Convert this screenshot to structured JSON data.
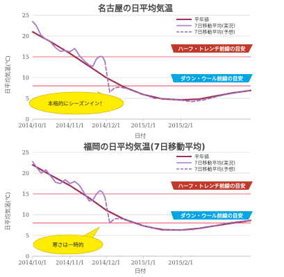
{
  "chart_data": [
    {
      "type": "line",
      "title": "名古屋の日平均気温",
      "xlabel": "日付",
      "ylabel": "日平均気温(℃)",
      "ylim": [
        0,
        25
      ],
      "yticks": [
        0,
        5,
        10,
        15,
        20,
        25
      ],
      "xlim": [
        "2014/10/1",
        "2015/3/31"
      ],
      "xticks": [
        "2014/10/1",
        "2014/11/1",
        "2014/12/1",
        "2015/1/1",
        "2015/2/1"
      ],
      "grid": "horizontal",
      "legend": "top-right",
      "series": [
        {
          "name": "平年値",
          "color": "#a0304f",
          "style": "solid",
          "x": [
            "2014/10/1",
            "2014/10/16",
            "2014/11/1",
            "2014/11/16",
            "2014/12/1",
            "2014/12/16",
            "2015/1/1",
            "2015/1/16",
            "2015/2/1",
            "2015/2/16",
            "2015/3/1",
            "2015/3/16",
            "2015/3/31"
          ],
          "y": [
            21.0,
            18.6,
            15.8,
            12.9,
            10.0,
            7.7,
            5.9,
            4.9,
            4.6,
            4.8,
            5.5,
            6.3,
            6.9
          ]
        },
        {
          "name": "7日移動平均(実況)",
          "color": "#a878d0",
          "style": "solid",
          "x": [
            "2014/10/1",
            "2014/10/4",
            "2014/10/8",
            "2014/10/12",
            "2014/10/16",
            "2014/10/20",
            "2014/10/24",
            "2014/10/28",
            "2014/11/1",
            "2014/11/5",
            "2014/11/9",
            "2014/11/13",
            "2014/11/17",
            "2014/11/20",
            "2014/11/23",
            "2014/11/26",
            "2014/11/28",
            "2014/11/30"
          ],
          "y": [
            23.5,
            22.5,
            20.2,
            19.2,
            18.5,
            17.2,
            16.3,
            16.5,
            16.2,
            17.0,
            15.2,
            14.0,
            13.0,
            12.7,
            14.5,
            15.1,
            15.0,
            13.9
          ]
        },
        {
          "name": "7日移動平均(予想)",
          "color": "#9a6bc2",
          "style": "dashed",
          "x": [
            "2014/11/30",
            "2014/12/2",
            "2014/12/4",
            "2014/12/6",
            "2014/12/8",
            "2014/12/12",
            "2014/12/18",
            "2014/12/25",
            "2015/1/1",
            "2015/1/10",
            "2015/1/20",
            "2015/1/31",
            "2015/2/10",
            "2015/2/20",
            "2015/3/1",
            "2015/3/10",
            "2015/3/20",
            "2015/3/31"
          ],
          "y": [
            13.9,
            10.0,
            6.5,
            7.0,
            7.5,
            7.7,
            7.4,
            6.6,
            6.0,
            5.0,
            4.9,
            4.6,
            4.2,
            4.6,
            5.3,
            5.9,
            6.4,
            6.9
          ]
        }
      ],
      "annotations": [
        {
          "text": "ハーフ・トレンチ前線の目安",
          "y": 15.0,
          "color": "#c0392b"
        },
        {
          "text": "ダウン・ウール前線の目安",
          "y": 8.0,
          "color": "#00a5e3"
        },
        {
          "text": "本格的にシーズンイン！",
          "shape": "callout",
          "color": "#ffec00"
        }
      ]
    },
    {
      "type": "line",
      "title": "福岡の日平均気温(7日移動平均)",
      "xlabel": "日付",
      "ylabel": "日平均気温(℃)",
      "ylim": [
        0,
        25
      ],
      "yticks": [
        0,
        5,
        10,
        15,
        20,
        25
      ],
      "xlim": [
        "2014/10/1",
        "2015/3/31"
      ],
      "xticks": [
        "2014/10/1",
        "2014/11/1",
        "2014/12/1",
        "2015/1/1",
        "2015/2/1"
      ],
      "grid": "horizontal",
      "legend": "top-right",
      "series": [
        {
          "name": "平年値",
          "color": "#a0304f",
          "style": "solid",
          "x": [
            "2014/10/1",
            "2014/10/16",
            "2014/11/1",
            "2014/11/16",
            "2014/12/1",
            "2014/12/16",
            "2015/1/1",
            "2015/1/16",
            "2015/2/1",
            "2015/2/16",
            "2015/3/1",
            "2015/3/16",
            "2015/3/31"
          ],
          "y": [
            22.0,
            19.5,
            17.0,
            14.2,
            11.1,
            8.9,
            7.3,
            6.4,
            6.3,
            6.7,
            7.3,
            8.0,
            8.6
          ]
        },
        {
          "name": "7日移動平均(実況)",
          "color": "#a878d0",
          "style": "solid",
          "x": [
            "2014/10/1",
            "2014/10/4",
            "2014/10/8",
            "2014/10/12",
            "2014/10/16",
            "2014/10/20",
            "2014/10/24",
            "2014/10/28",
            "2014/11/1",
            "2014/11/5",
            "2014/11/9",
            "2014/11/13",
            "2014/11/17",
            "2014/11/20",
            "2014/11/23",
            "2014/11/26",
            "2014/11/28",
            "2014/11/30"
          ],
          "y": [
            22.8,
            21.5,
            20.0,
            20.8,
            19.3,
            17.8,
            17.5,
            18.4,
            17.5,
            18.0,
            17.0,
            15.1,
            13.3,
            13.5,
            15.0,
            15.8,
            15.4,
            14.2
          ]
        },
        {
          "name": "7日移動平均(予想)",
          "color": "#9a6bc2",
          "style": "dashed",
          "x": [
            "2014/11/30",
            "2014/12/2",
            "2014/12/4",
            "2014/12/6",
            "2014/12/8",
            "2014/12/12",
            "2014/12/18",
            "2014/12/25",
            "2015/1/1",
            "2015/1/10",
            "2015/1/20",
            "2015/1/31",
            "2015/2/10",
            "2015/2/20",
            "2015/3/1",
            "2015/3/10",
            "2015/3/20",
            "2015/3/31"
          ],
          "y": [
            14.2,
            11.0,
            8.0,
            8.5,
            9.0,
            9.1,
            8.8,
            7.9,
            7.3,
            6.8,
            6.4,
            6.3,
            6.4,
            6.8,
            7.3,
            7.9,
            8.3,
            8.6
          ]
        }
      ],
      "annotations": [
        {
          "text": "ハーフ・トレンチ前線の目安",
          "y": 15.0,
          "color": "#c0392b"
        },
        {
          "text": "ダウン・ウール前線の目安",
          "y": 8.0,
          "color": "#00a5e3"
        },
        {
          "text": "寒さは一時的",
          "shape": "callout",
          "color": "#ffec00"
        }
      ]
    }
  ]
}
